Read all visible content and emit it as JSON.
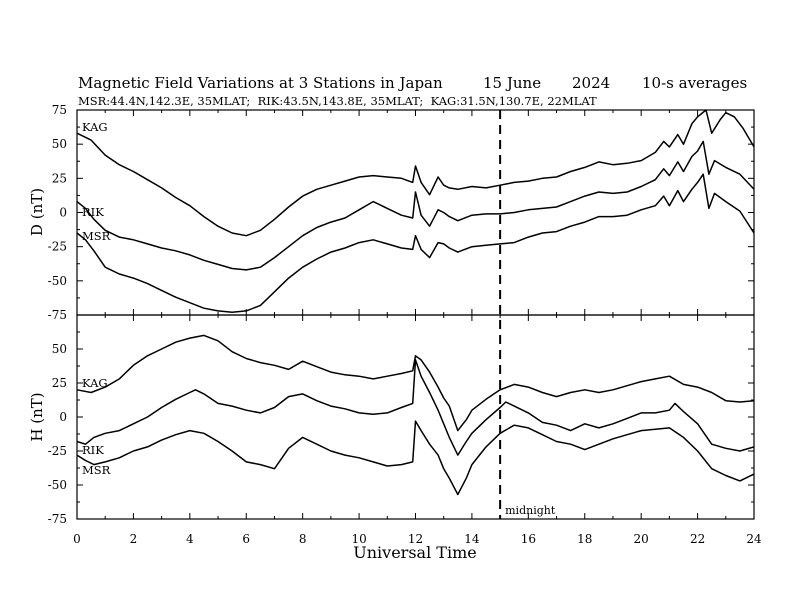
{
  "chart_data": {
    "type": "line",
    "title": "Magnetic Field Variations at 3 Stations in Japan",
    "date": "15 June",
    "year": "2024",
    "averaging": "10-s averages",
    "subtitle": "MSR:44.4N,142.3E, 35MLAT;  RIK:43.5N,143.8E, 35MLAT;  KAG:31.5N,130.7E, 22MLAT",
    "xlabel": "Universal Time",
    "xlim": [
      0,
      24
    ],
    "xticks": [
      "0",
      "2",
      "4",
      "6",
      "8",
      "10",
      "12",
      "14",
      "16",
      "18",
      "20",
      "22",
      "24"
    ],
    "midnight_ut": 15,
    "midnight_label": "midnight",
    "panels": [
      {
        "ylabel": "D (nT)",
        "ylim": [
          -75,
          75
        ],
        "yticks": [
          "75",
          "50",
          "25",
          "0",
          "-25",
          "-50",
          "-75"
        ],
        "series": [
          {
            "name": "KAG",
            "x": [
              0,
              0.5,
              1,
              1.5,
              2,
              2.5,
              3,
              3.5,
              4,
              4.5,
              5,
              5.5,
              6,
              6.5,
              7,
              7.5,
              8,
              8.5,
              9,
              9.5,
              10,
              10.5,
              11,
              11.5,
              11.9,
              12,
              12.2,
              12.5,
              12.8,
              13,
              13.2,
              13.5,
              14,
              14.5,
              15,
              15.5,
              16,
              16.5,
              17,
              17.5,
              18,
              18.5,
              19,
              19.5,
              20,
              20.5,
              20.8,
              21,
              21.3,
              21.5,
              21.8,
              22,
              22.3,
              22.5,
              22.8,
              23,
              23.3,
              23.6,
              24
            ],
            "y": [
              58,
              53,
              42,
              35,
              30,
              24,
              18,
              11,
              5,
              -3,
              -10,
              -15,
              -17,
              -13,
              -5,
              4,
              12,
              17,
              20,
              23,
              26,
              27,
              26,
              25,
              22,
              34,
              22,
              13,
              26,
              20,
              18,
              17,
              19,
              18,
              20,
              22,
              23,
              25,
              26,
              30,
              33,
              37,
              35,
              36,
              38,
              44,
              52,
              48,
              57,
              50,
              65,
              70,
              78,
              58,
              68,
              73,
              70,
              62,
              48
            ]
          },
          {
            "name": "RIK",
            "x": [
              0,
              0.3,
              0.6,
              1,
              1.5,
              2,
              2.5,
              3,
              3.5,
              4,
              4.5,
              5,
              5.5,
              6,
              6.5,
              7,
              7.5,
              8,
              8.5,
              9,
              9.5,
              10,
              10.5,
              11,
              11.5,
              11.9,
              12,
              12.2,
              12.5,
              12.8,
              13,
              13.2,
              13.5,
              14,
              14.5,
              15,
              15.5,
              16,
              16.5,
              17,
              17.5,
              18,
              18.5,
              19,
              19.5,
              20,
              20.5,
              20.8,
              21,
              21.3,
              21.5,
              21.8,
              22,
              22.2,
              22.4,
              22.6,
              23,
              23.5,
              24
            ],
            "y": [
              8,
              3,
              -5,
              -13,
              -18,
              -20,
              -23,
              -26,
              -28,
              -31,
              -35,
              -38,
              -41,
              -42,
              -40,
              -33,
              -25,
              -17,
              -11,
              -7,
              -4,
              2,
              8,
              3,
              -2,
              -4,
              15,
              -2,
              -10,
              2,
              0,
              -3,
              -6,
              -2,
              -1,
              -1,
              0,
              2,
              3,
              4,
              8,
              12,
              15,
              14,
              15,
              19,
              24,
              32,
              27,
              37,
              30,
              41,
              45,
              52,
              28,
              38,
              33,
              28,
              17
            ]
          },
          {
            "name": "MSR",
            "x": [
              0,
              0.3,
              0.6,
              1,
              1.5,
              2,
              2.5,
              3,
              3.5,
              4,
              4.5,
              5,
              5.5,
              6,
              6.5,
              7,
              7.5,
              8,
              8.5,
              9,
              9.5,
              10,
              10.5,
              11,
              11.5,
              11.9,
              12,
              12.2,
              12.5,
              12.8,
              13,
              13.2,
              13.5,
              14,
              14.5,
              15,
              15.5,
              16,
              16.5,
              17,
              17.5,
              18,
              18.5,
              19,
              19.5,
              20,
              20.5,
              20.8,
              21,
              21.3,
              21.5,
              21.8,
              22,
              22.2,
              22.4,
              22.6,
              23,
              23.5,
              24
            ],
            "y": [
              -15,
              -20,
              -28,
              -40,
              -45,
              -48,
              -52,
              -57,
              -62,
              -66,
              -70,
              -72,
              -73,
              -72,
              -68,
              -58,
              -48,
              -40,
              -34,
              -29,
              -26,
              -22,
              -20,
              -23,
              -26,
              -27,
              -17,
              -27,
              -33,
              -22,
              -23,
              -26,
              -29,
              -25,
              -24,
              -23,
              -22,
              -18,
              -15,
              -14,
              -10,
              -7,
              -3,
              -3,
              -2,
              2,
              5,
              12,
              5,
              16,
              8,
              17,
              22,
              28,
              3,
              14,
              8,
              1,
              -15
            ]
          }
        ]
      },
      {
        "ylabel": "H (nT)",
        "ylim": [
          -75,
          75
        ],
        "yticks": [
          "75",
          "50",
          "25",
          "0",
          "-25",
          "-50",
          "-75"
        ],
        "series": [
          {
            "name": "KAG",
            "x": [
              0,
              0.5,
              1,
              1.5,
              2,
              2.5,
              3,
              3.5,
              4,
              4.5,
              5,
              5.5,
              6,
              6.5,
              7,
              7.5,
              8,
              8.5,
              9,
              9.5,
              10,
              10.5,
              11,
              11.5,
              11.9,
              12,
              12.2,
              12.5,
              12.8,
              13,
              13.2,
              13.5,
              13.8,
              14,
              14.5,
              15,
              15.5,
              16,
              16.5,
              17,
              17.5,
              18,
              18.5,
              19,
              19.5,
              20,
              20.5,
              21,
              21.5,
              22,
              22.5,
              23,
              23.5,
              24
            ],
            "y": [
              20,
              18,
              22,
              28,
              38,
              45,
              50,
              55,
              58,
              60,
              56,
              48,
              43,
              40,
              38,
              35,
              41,
              37,
              33,
              31,
              30,
              28,
              30,
              32,
              34,
              45,
              42,
              33,
              22,
              14,
              8,
              -10,
              -2,
              5,
              13,
              20,
              24,
              22,
              18,
              15,
              18,
              20,
              18,
              20,
              23,
              26,
              28,
              30,
              24,
              22,
              18,
              12,
              11,
              12
            ]
          },
          {
            "name": "RIK",
            "x": [
              0,
              0.3,
              0.6,
              1,
              1.5,
              2,
              2.5,
              3,
              3.5,
              4,
              4.2,
              4.5,
              5,
              5.5,
              6,
              6.5,
              7,
              7.5,
              8,
              8.5,
              9,
              9.5,
              10,
              10.5,
              11,
              11.5,
              11.9,
              12,
              12.2,
              12.5,
              12.8,
              13,
              13.2,
              13.5,
              13.8,
              14,
              14.5,
              15,
              15.2,
              15.5,
              16,
              16.5,
              17,
              17.5,
              18,
              18.5,
              19,
              19.5,
              20,
              20.5,
              21,
              21.2,
              21.5,
              22,
              22.5,
              23,
              23.5,
              24
            ],
            "y": [
              -18,
              -20,
              -15,
              -12,
              -10,
              -5,
              0,
              7,
              13,
              18,
              20,
              17,
              10,
              8,
              5,
              3,
              7,
              15,
              17,
              12,
              8,
              6,
              3,
              2,
              3,
              7,
              10,
              42,
              30,
              18,
              5,
              -5,
              -15,
              -28,
              -18,
              -12,
              -2,
              7,
              11,
              8,
              3,
              -4,
              -6,
              -10,
              -5,
              -8,
              -5,
              -1,
              3,
              3,
              5,
              10,
              4,
              -5,
              -20,
              -23,
              -25,
              -22
            ]
          },
          {
            "name": "MSR",
            "x": [
              0,
              0.3,
              0.6,
              1,
              1.5,
              2,
              2.5,
              3,
              3.5,
              4,
              4.5,
              5,
              5.5,
              6,
              6.5,
              7,
              7.5,
              8,
              8.5,
              9,
              9.5,
              10,
              10.5,
              11,
              11.5,
              11.9,
              12,
              12.2,
              12.5,
              12.8,
              13,
              13.2,
              13.5,
              13.8,
              14,
              14.5,
              15,
              15.5,
              16,
              16.5,
              17,
              17.5,
              18,
              18.5,
              19,
              19.5,
              20,
              20.5,
              21,
              21.5,
              22,
              22.5,
              23,
              23.5,
              24
            ],
            "y": [
              -28,
              -32,
              -35,
              -33,
              -30,
              -25,
              -22,
              -17,
              -13,
              -10,
              -12,
              -18,
              -25,
              -33,
              -35,
              -38,
              -23,
              -15,
              -20,
              -25,
              -28,
              -30,
              -33,
              -36,
              -35,
              -33,
              -3,
              -10,
              -20,
              -28,
              -38,
              -45,
              -57,
              -45,
              -35,
              -22,
              -12,
              -6,
              -8,
              -13,
              -18,
              -20,
              -24,
              -20,
              -16,
              -13,
              -10,
              -9,
              -8,
              -15,
              -25,
              -38,
              -43,
              -47,
              -42
            ]
          }
        ]
      }
    ]
  }
}
